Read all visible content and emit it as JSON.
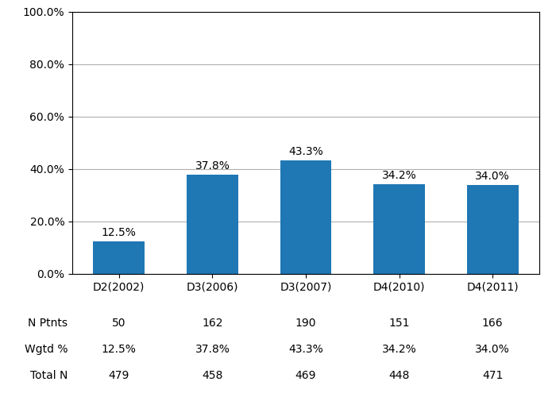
{
  "chart_data": {
    "type": "bar",
    "categories": [
      "D2(2002)",
      "D3(2006)",
      "D3(2007)",
      "D4(2010)",
      "D4(2011)"
    ],
    "values": [
      12.5,
      37.8,
      43.3,
      34.2,
      34.0
    ],
    "value_labels": [
      "12.5%",
      "37.8%",
      "43.3%",
      "34.2%",
      "34.0%"
    ],
    "data_labels": true,
    "ylim": [
      0,
      100
    ],
    "yticks": [
      {
        "value": 0,
        "label": "0.0%"
      },
      {
        "value": 20,
        "label": "20.0%"
      },
      {
        "value": 40,
        "label": "40.0%"
      },
      {
        "value": 60,
        "label": "60.0%"
      },
      {
        "value": 80,
        "label": "80.0%"
      },
      {
        "value": 100,
        "label": "100.0%"
      }
    ],
    "grid": true,
    "table": {
      "row_labels": [
        "N Ptnts",
        "Wgtd %",
        "Total N"
      ],
      "cells": [
        [
          "50",
          "162",
          "190",
          "151",
          "166"
        ],
        [
          "12.5%",
          "37.8%",
          "43.3%",
          "34.2%",
          "34.0%"
        ],
        [
          "479",
          "458",
          "469",
          "448",
          "471"
        ]
      ]
    }
  }
}
